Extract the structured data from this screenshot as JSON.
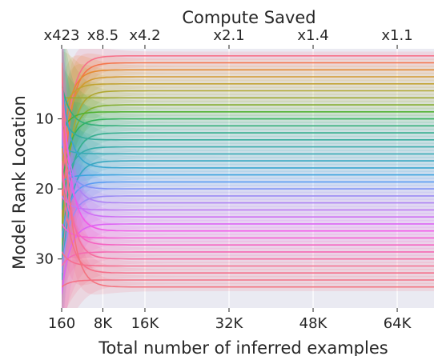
{
  "chart_data": {
    "type": "line",
    "title": "",
    "xlabel": "Total number of inferred examples",
    "ylabel": "Model Rank Location",
    "top_xlabel": "Compute Saved",
    "xlim": [
      160,
      71000
    ],
    "ylim": [
      37,
      0
    ],
    "x_ticks": [
      {
        "value": 160,
        "label": "160"
      },
      {
        "value": 8000,
        "label": "8K"
      },
      {
        "value": 16000,
        "label": "16K"
      },
      {
        "value": 32000,
        "label": "32K"
      },
      {
        "value": 48000,
        "label": "48K"
      },
      {
        "value": 64000,
        "label": "64K"
      }
    ],
    "top_ticks": [
      {
        "value": 160,
        "label": "x423"
      },
      {
        "value": 8000,
        "label": "x8.5"
      },
      {
        "value": 16000,
        "label": "x4.2"
      },
      {
        "value": 32000,
        "label": "x2.1"
      },
      {
        "value": 48000,
        "label": "x1.4"
      },
      {
        "value": 64000,
        "label": "x1.1"
      }
    ],
    "y_ticks": [
      {
        "value": 10,
        "label": "10"
      },
      {
        "value": 20,
        "label": "20"
      },
      {
        "value": 30,
        "label": "30"
      }
    ],
    "grid": true,
    "background": "#eaeaf2",
    "series": [
      {
        "final_rank": 1,
        "color": "#f77189",
        "start": 22
      },
      {
        "final_rank": 2,
        "color": "#f5744a",
        "start": 24
      },
      {
        "final_rank": 3,
        "color": "#e58b31",
        "start": 15
      },
      {
        "final_rank": 4,
        "color": "#d49a31",
        "start": 18
      },
      {
        "final_rank": 5,
        "color": "#c2a331",
        "start": 10
      },
      {
        "final_rank": 6,
        "color": "#b0a731",
        "start": 28
      },
      {
        "final_rank": 7,
        "color": "#9eaa31",
        "start": 7
      },
      {
        "final_rank": 8,
        "color": "#84ae31",
        "start": 26
      },
      {
        "final_rank": 9,
        "color": "#50b131",
        "start": 12
      },
      {
        "final_rank": 10,
        "color": "#32b25a",
        "start": 20
      },
      {
        "final_rank": 11,
        "color": "#34b07a",
        "start": 5
      },
      {
        "final_rank": 12,
        "color": "#35ae8e",
        "start": 30
      },
      {
        "final_rank": 13,
        "color": "#36ac9d",
        "start": 9
      },
      {
        "final_rank": 14,
        "color": "#37abaa",
        "start": 23
      },
      {
        "final_rank": 15,
        "color": "#38aab5",
        "start": 14
      },
      {
        "final_rank": 16,
        "color": "#39a8c1",
        "start": 33
      },
      {
        "final_rank": 17,
        "color": "#3aa6cf",
        "start": 4
      },
      {
        "final_rank": 18,
        "color": "#3ca3e0",
        "start": 19
      },
      {
        "final_rank": 19,
        "color": "#5a9cf3",
        "start": 27
      },
      {
        "final_rank": 20,
        "color": "#8193f5",
        "start": 13
      },
      {
        "final_rank": 21,
        "color": "#9b8bf4",
        "start": 32
      },
      {
        "final_rank": 22,
        "color": "#ad83f4",
        "start": 6
      },
      {
        "final_rank": 23,
        "color": "#bd7af4",
        "start": 21
      },
      {
        "final_rank": 24,
        "color": "#cd70f4",
        "start": 11
      },
      {
        "final_rank": 25,
        "color": "#dd64f4",
        "start": 35
      },
      {
        "final_rank": 26,
        "color": "#f05ae8",
        "start": 3
      },
      {
        "final_rank": 27,
        "color": "#f45fd4",
        "start": 25
      },
      {
        "final_rank": 28,
        "color": "#f564c2",
        "start": 16
      },
      {
        "final_rank": 29,
        "color": "#f569b1",
        "start": 31
      },
      {
        "final_rank": 30,
        "color": "#f56d9f",
        "start": 8
      },
      {
        "final_rank": 31,
        "color": "#f66e8f",
        "start": 29
      },
      {
        "final_rank": 32,
        "color": "#f5708a",
        "start": 17
      },
      {
        "final_rank": 33,
        "color": "#f47285",
        "start": 34
      },
      {
        "final_rank": 34,
        "color": "#f37480",
        "start": 2
      }
    ]
  }
}
